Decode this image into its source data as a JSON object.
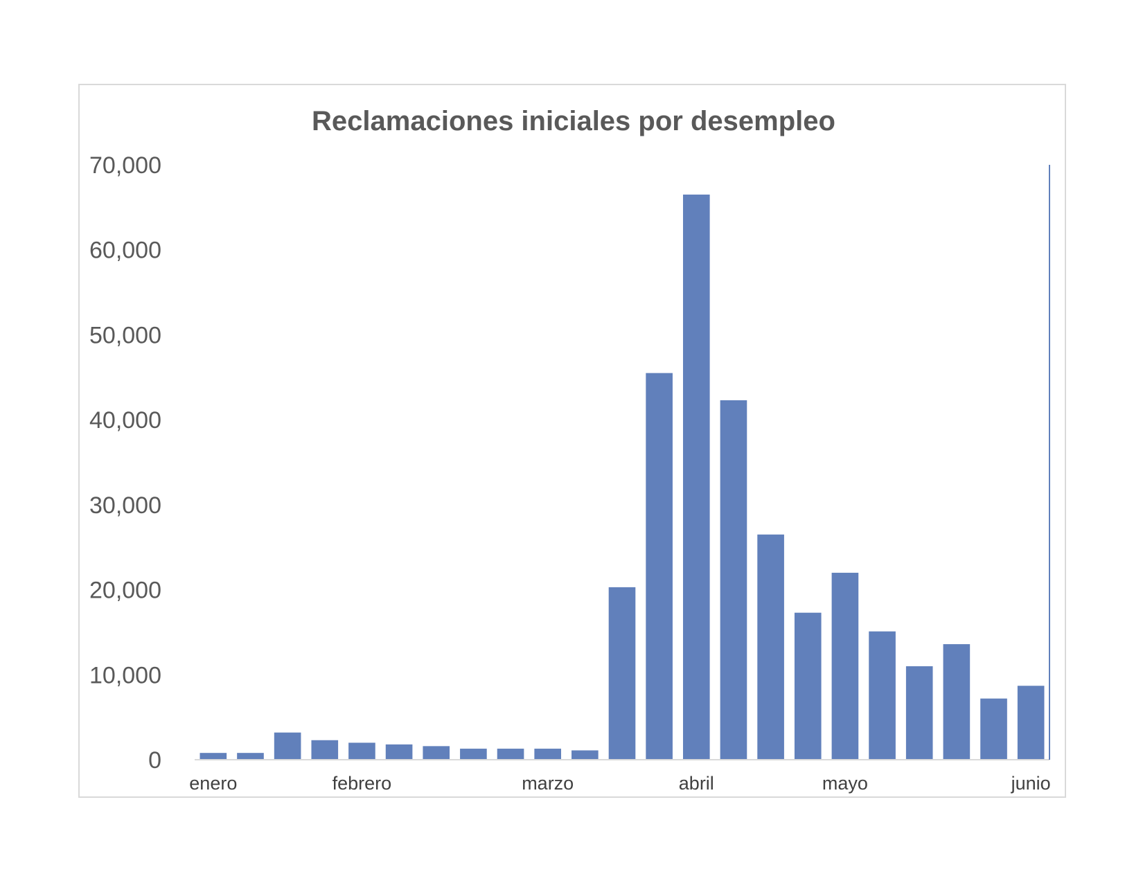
{
  "chart_data": {
    "type": "bar",
    "title": "Reclamaciones iniciales por desempleo",
    "xlabel": "",
    "ylabel": "",
    "ylim": [
      0,
      70000
    ],
    "yticks": [
      0,
      10000,
      20000,
      30000,
      40000,
      50000,
      60000,
      70000
    ],
    "ytick_labels": [
      "0",
      "10,000",
      "20,000",
      "30,000",
      "40,000",
      "50,000",
      "60,000",
      "70,000"
    ],
    "month_labels": [
      {
        "label": "enero",
        "bar_index": 0.5
      },
      {
        "label": "febrero",
        "bar_index": 4.5
      },
      {
        "label": "marzo",
        "bar_index": 9.5
      },
      {
        "label": "abril",
        "bar_index": 13.5
      },
      {
        "label": "mayo",
        "bar_index": 17.5
      },
      {
        "label": "junio",
        "bar_index": 22.5
      }
    ],
    "values": [
      800,
      800,
      3200,
      2300,
      2000,
      1800,
      1600,
      1300,
      1300,
      1300,
      1100,
      20300,
      45500,
      66500,
      42300,
      26500,
      17300,
      22000,
      15100,
      11000,
      13600,
      7200,
      8700
    ],
    "bar_color": "#6180bb",
    "grid": false,
    "legend": "none"
  }
}
